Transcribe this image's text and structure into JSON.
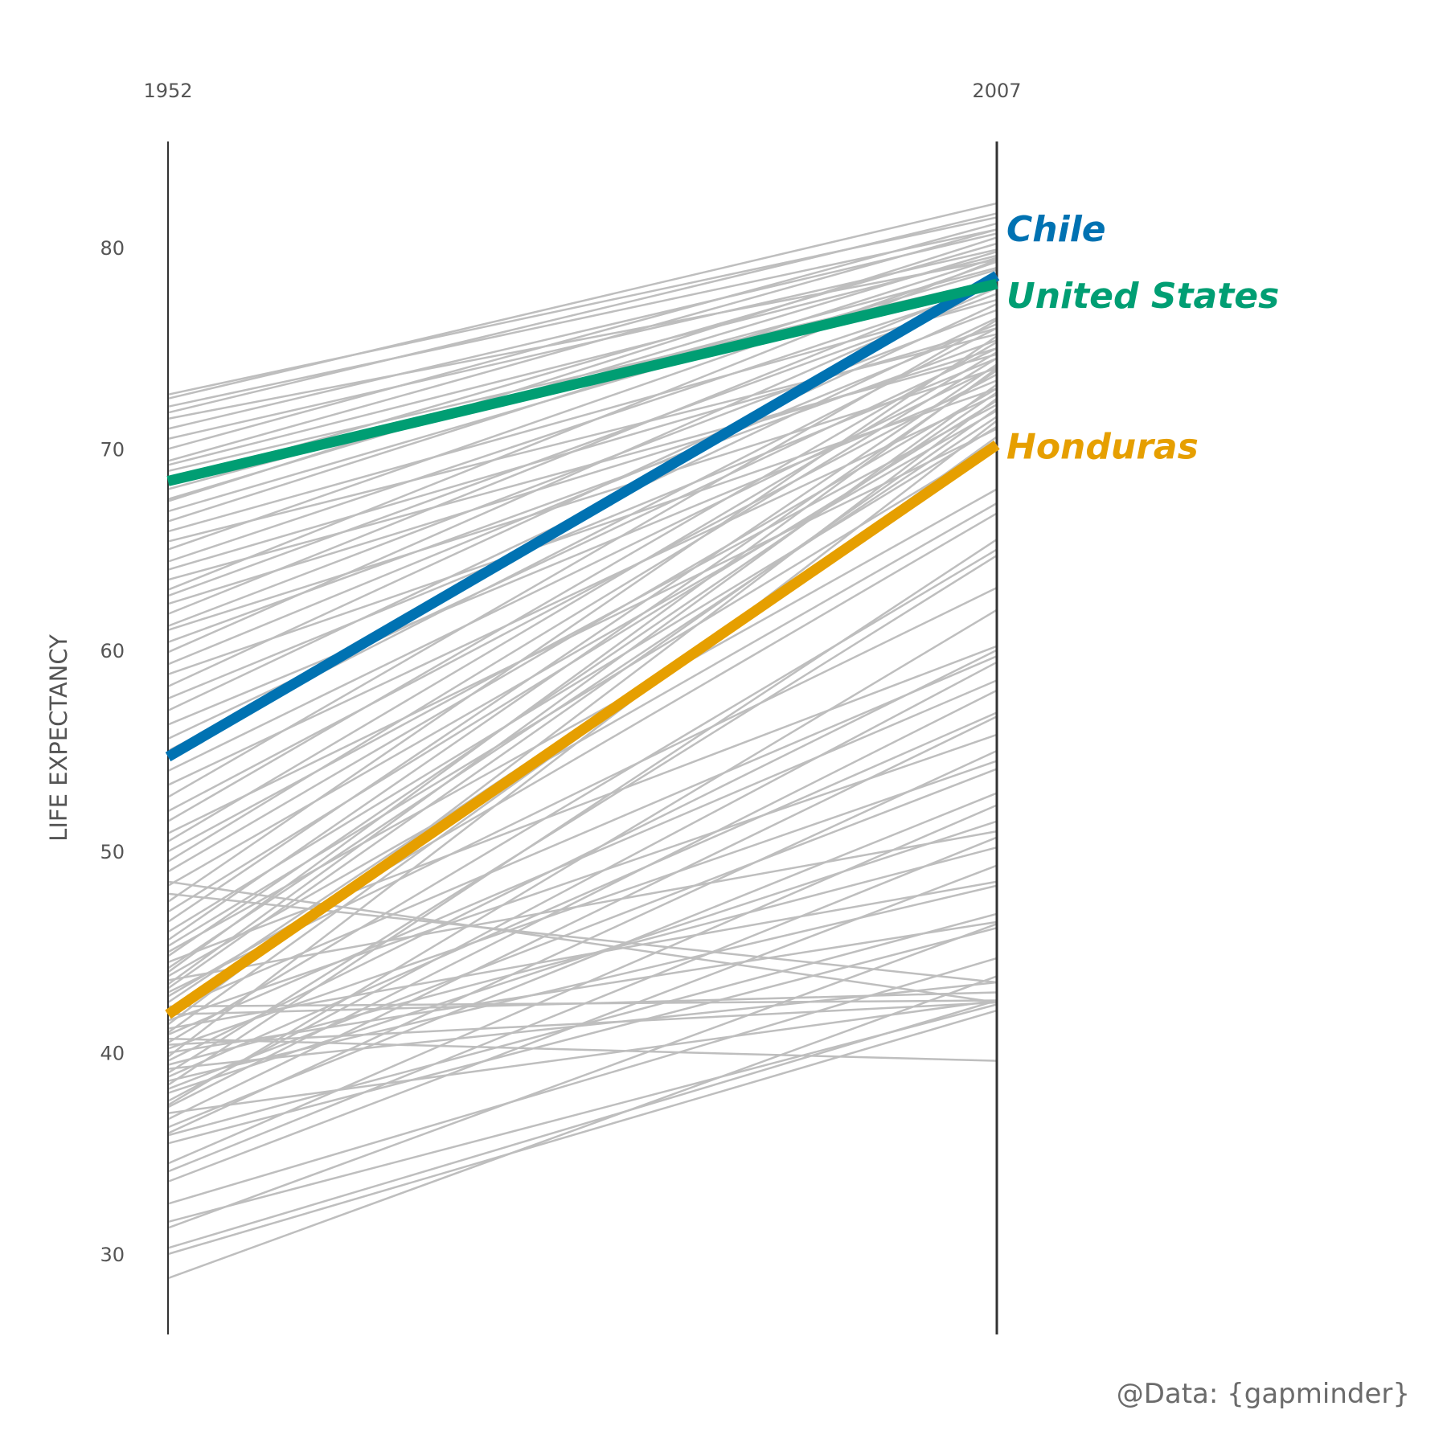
{
  "chart_data": {
    "type": "line",
    "x": [
      "1952",
      "2007"
    ],
    "ylabel": "LIFE EXPECTANCY",
    "ylim": [
      26,
      85.5
    ],
    "yticks": [
      "30",
      "40",
      "50",
      "60",
      "70",
      "80"
    ],
    "caption": "@Data: {gapminder}",
    "grid": false,
    "legend": "direct labels at right",
    "background_color": "#bebebe",
    "axis_color": "#333333",
    "highlighted": [
      {
        "name": "Chile",
        "values": [
          54.7,
          78.6
        ],
        "color": "#0072b2"
      },
      {
        "name": "United States",
        "values": [
          68.4,
          78.2
        ],
        "color": "#009e73"
      },
      {
        "name": "Honduras",
        "values": [
          41.9,
          70.2
        ],
        "color": "#e69f00"
      }
    ],
    "background_series": [
      [
        28.8,
        43.8
      ],
      [
        30.0,
        42.1
      ],
      [
        30.3,
        42.6
      ],
      [
        31.3,
        46.4
      ],
      [
        31.6,
        42.4
      ],
      [
        32.5,
        44.7
      ],
      [
        33.6,
        49.3
      ],
      [
        34.1,
        50.7
      ],
      [
        34.5,
        52.3
      ],
      [
        35.5,
        46.2
      ],
      [
        35.9,
        46.9
      ],
      [
        36.0,
        55.0
      ],
      [
        36.3,
        52.9
      ],
      [
        36.7,
        56.7
      ],
      [
        37.0,
        42.6
      ],
      [
        37.3,
        58.0
      ],
      [
        37.4,
        62.0
      ],
      [
        37.6,
        59.4
      ],
      [
        38.0,
        51.5
      ],
      [
        38.2,
        54.1
      ],
      [
        38.4,
        65.5
      ],
      [
        38.6,
        48.3
      ],
      [
        38.8,
        56.9
      ],
      [
        39.0,
        64.7
      ],
      [
        39.2,
        43.5
      ],
      [
        39.4,
        50.2
      ],
      [
        39.6,
        60.0
      ],
      [
        39.8,
        71.4
      ],
      [
        40.0,
        46.5
      ],
      [
        40.2,
        54.5
      ],
      [
        40.4,
        42.5
      ],
      [
        40.5,
        65.0
      ],
      [
        40.7,
        39.6
      ],
      [
        40.9,
        58.5
      ],
      [
        41.0,
        70.6
      ],
      [
        41.2,
        48.5
      ],
      [
        41.4,
        72.5
      ],
      [
        41.6,
        55.8
      ],
      [
        41.9,
        43.0
      ],
      [
        42.1,
        59.7
      ],
      [
        42.3,
        42.6
      ],
      [
        42.5,
        70.0
      ],
      [
        42.8,
        66.8
      ],
      [
        43.0,
        63.1
      ],
      [
        43.2,
        72.0
      ],
      [
        43.4,
        73.2
      ],
      [
        43.6,
        51.0
      ],
      [
        43.8,
        67.3
      ],
      [
        44.0,
        74.0
      ],
      [
        44.2,
        71.6
      ],
      [
        44.5,
        60.2
      ],
      [
        44.8,
        72.8
      ],
      [
        45.0,
        68.0
      ],
      [
        45.3,
        70.3
      ],
      [
        45.6,
        73.9
      ],
      [
        46.0,
        71.1
      ],
      [
        46.5,
        74.2
      ],
      [
        47.0,
        72.4
      ],
      [
        47.5,
        75.6
      ],
      [
        47.9,
        43.5
      ],
      [
        48.3,
        71.9
      ],
      [
        48.5,
        42.5
      ],
      [
        49.0,
        73.0
      ],
      [
        49.5,
        74.5
      ],
      [
        50.0,
        72.2
      ],
      [
        50.5,
        74.8
      ],
      [
        50.9,
        71.0
      ],
      [
        51.5,
        75.3
      ],
      [
        52.0,
        73.7
      ],
      [
        52.7,
        76.4
      ],
      [
        53.3,
        72.7
      ],
      [
        54.0,
        74.1
      ],
      [
        55.0,
        76.0
      ],
      [
        55.6,
        75.0
      ],
      [
        56.3,
        73.4
      ],
      [
        57.0,
        76.5
      ],
      [
        57.6,
        74.5
      ],
      [
        58.2,
        77.2
      ],
      [
        58.8,
        73.0
      ],
      [
        59.3,
        76.2
      ],
      [
        59.9,
        78.0
      ],
      [
        60.4,
        75.4
      ],
      [
        61.0,
        74.0
      ],
      [
        61.2,
        76.9
      ],
      [
        61.8,
        78.3
      ],
      [
        62.3,
        75.0
      ],
      [
        62.7,
        77.7
      ],
      [
        63.0,
        79.4
      ],
      [
        63.5,
        74.7
      ],
      [
        64.0,
        76.0
      ],
      [
        64.4,
        78.1
      ],
      [
        65.0,
        79.3
      ],
      [
        65.4,
        75.7
      ],
      [
        65.9,
        77.4
      ],
      [
        66.4,
        79.5
      ],
      [
        66.9,
        78.9
      ],
      [
        67.4,
        80.5
      ],
      [
        67.5,
        79.8
      ],
      [
        68.0,
        79.0
      ],
      [
        68.3,
        80.2
      ],
      [
        68.9,
        78.4
      ],
      [
        69.2,
        79.6
      ],
      [
        69.4,
        80.9
      ],
      [
        70.0,
        81.2
      ],
      [
        70.5,
        79.9
      ],
      [
        71.0,
        80.7
      ],
      [
        71.5,
        79.4
      ],
      [
        71.8,
        81.7
      ],
      [
        72.1,
        80.9
      ],
      [
        72.5,
        82.2
      ],
      [
        72.7,
        81.5
      ]
    ]
  }
}
